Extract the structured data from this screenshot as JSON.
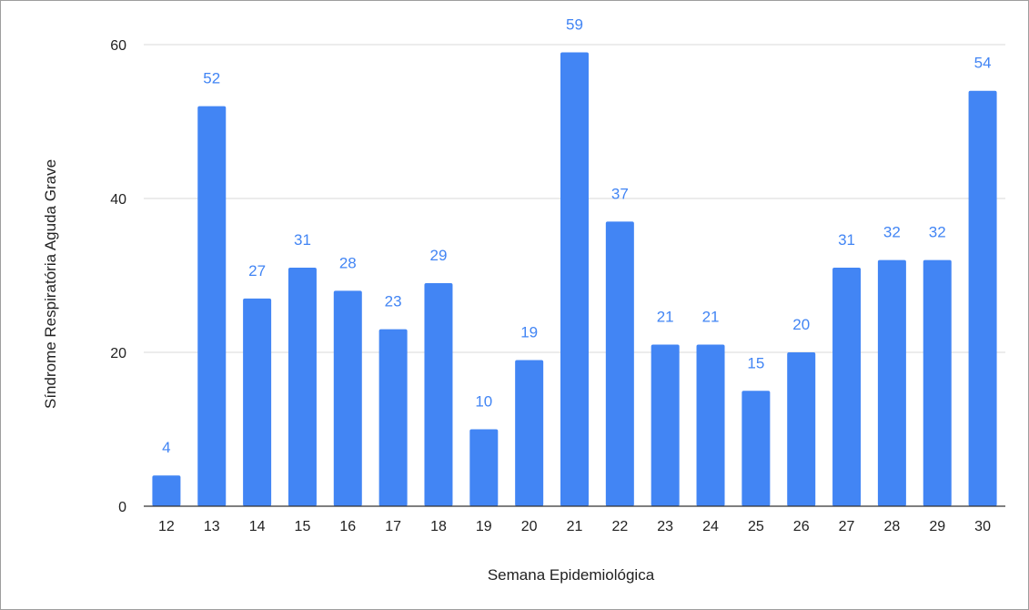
{
  "chart_data": {
    "type": "bar",
    "title": "",
    "xlabel": "Semana Epidemiológica",
    "ylabel": "Síndrome Respiratória Aguda Grave",
    "categories": [
      "12",
      "13",
      "14",
      "15",
      "16",
      "17",
      "18",
      "19",
      "20",
      "21",
      "22",
      "23",
      "24",
      "25",
      "26",
      "27",
      "28",
      "29",
      "30"
    ],
    "values": [
      4,
      52,
      27,
      31,
      28,
      23,
      29,
      10,
      19,
      59,
      37,
      21,
      21,
      15,
      20,
      31,
      32,
      32,
      54
    ],
    "ylim": [
      0,
      60
    ],
    "yticks": [
      0,
      20,
      40,
      60
    ],
    "grid": true,
    "legend": "none",
    "bar_color": "#4285f4",
    "label_color": "#4285f4"
  }
}
